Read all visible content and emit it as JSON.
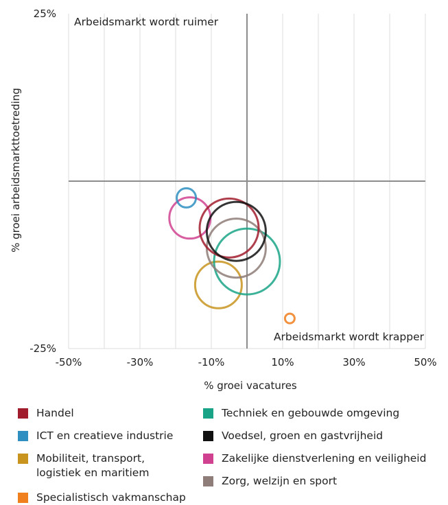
{
  "chart_data": {
    "type": "bubble",
    "xlabel": "% groei vacatures",
    "ylabel": "% groei arbeidsmarkttoetreding",
    "xlim": [
      -50,
      50
    ],
    "ylim": [
      -25,
      25
    ],
    "x_ticks": [
      "-50%",
      "-30%",
      "-10%",
      "10%",
      "30%",
      "50%"
    ],
    "y_ticks": [
      "25%",
      "-25%"
    ],
    "grid": "vertical",
    "annotations": {
      "top_left": "Arbeidsmarkt wordt ruimer",
      "bottom_right": "Arbeidsmarkt wordt krapper"
    },
    "series": [
      {
        "name": "Handel",
        "x": -5,
        "y": -7,
        "size": 43,
        "color": "#a11d2e"
      },
      {
        "name": "ICT en creatieve industrie",
        "x": -17,
        "y": -2.5,
        "size": 14,
        "color": "#2e8fc0"
      },
      {
        "name": "Mobiliteit, transport,\nlogistiek en maritiem",
        "x": -8,
        "y": -15.5,
        "size": 34,
        "color": "#c8941e"
      },
      {
        "name": "Specialistisch vakmanschap",
        "x": 12,
        "y": -20.5,
        "size": 7,
        "color": "#f07f1e"
      },
      {
        "name": "Techniek en gebouwde omgeving",
        "x": 0,
        "y": -12,
        "size": 48,
        "color": "#1aa487"
      },
      {
        "name": "Voedsel, groen en gastvrijheid",
        "x": -3,
        "y": -7.5,
        "size": 43,
        "color": "#111111"
      },
      {
        "name": "Zakelijke dienstverlening en veiligheid",
        "x": -16,
        "y": -5.5,
        "size": 30,
        "color": "#d0428f"
      },
      {
        "name": "Zorg, welzijn en sport",
        "x": -3,
        "y": -10,
        "size": 43,
        "color": "#8e7d78"
      }
    ]
  }
}
